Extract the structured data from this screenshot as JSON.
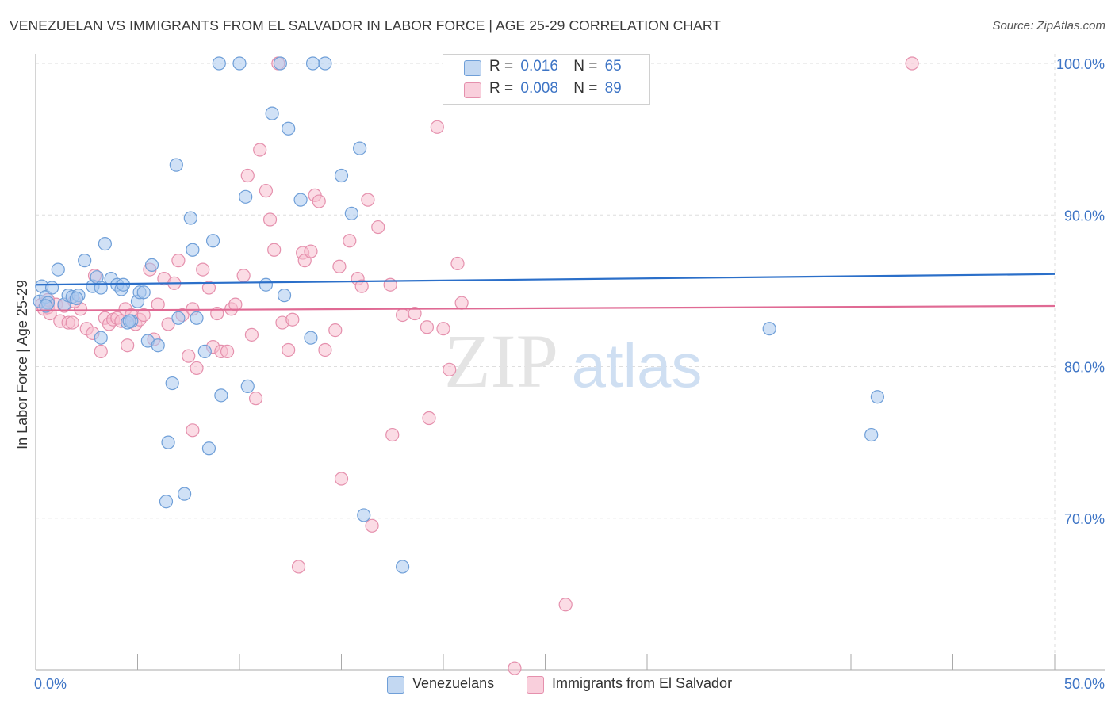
{
  "header": {
    "title": "VENEZUELAN VS IMMIGRANTS FROM EL SALVADOR IN LABOR FORCE | AGE 25-29 CORRELATION CHART",
    "source": "Source: ZipAtlas.com"
  },
  "watermark": {
    "zip": "ZIP",
    "atlas": "atlas"
  },
  "legend": {
    "rows": [
      {
        "r_label": "R =",
        "r_value": "0.016",
        "n_label": "N =",
        "n_value": "65"
      },
      {
        "r_label": "R =",
        "r_value": "0.008",
        "n_label": "N =",
        "n_value": "89"
      }
    ]
  },
  "bottom_legend": {
    "series_a": "Venezuelans",
    "series_b": "Immigrants from El Salvador"
  },
  "colors": {
    "blue_fill": "#aac8ee",
    "blue_stroke": "#6f9fd8",
    "blue_line": "#2b6fc9",
    "pink_fill": "#f7bfd0",
    "pink_stroke": "#e590ad",
    "pink_line": "#e06a94",
    "tick_label": "#3d74c5",
    "grid": "#dedede"
  },
  "chart_data": {
    "type": "scatter",
    "title": "VENEZUELAN VS IMMIGRANTS FROM EL SALVADOR IN LABOR FORCE | AGE 25-29 CORRELATION CHART",
    "xlabel": "",
    "ylabel": "In Labor Force | Age 25-29",
    "xlim": [
      0,
      50
    ],
    "ylim": [
      60,
      101.5
    ],
    "x_tick_labels": [
      {
        "value": 0,
        "label": "0.0%"
      },
      {
        "value": 50,
        "label": "50.0%"
      }
    ],
    "y_tick_labels": [
      {
        "value": 70,
        "label": "70.0%"
      },
      {
        "value": 80,
        "label": "80.0%"
      },
      {
        "value": 90,
        "label": "90.0%"
      },
      {
        "value": 100,
        "label": "100.0%"
      }
    ],
    "x_minor_ticks": [
      0,
      5,
      10,
      15,
      20,
      25,
      30,
      35,
      40,
      45,
      50
    ],
    "series": [
      {
        "name": "Venezuelans",
        "R": 0.016,
        "N": 65,
        "trend": {
          "x": [
            0,
            50
          ],
          "y": [
            85.4,
            86.1
          ]
        },
        "points": [
          [
            0.2,
            84.3
          ],
          [
            0.3,
            85.3
          ],
          [
            0.5,
            84.6
          ],
          [
            0.6,
            84.2
          ],
          [
            0.8,
            85.2
          ],
          [
            1.1,
            86.4
          ],
          [
            1.4,
            84.1
          ],
          [
            1.6,
            84.7
          ],
          [
            1.8,
            84.6
          ],
          [
            2.1,
            84.7
          ],
          [
            2.4,
            87.0
          ],
          [
            2.8,
            85.3
          ],
          [
            3.0,
            85.9
          ],
          [
            3.2,
            81.9
          ],
          [
            3.4,
            88.1
          ],
          [
            3.7,
            85.8
          ],
          [
            4.0,
            85.4
          ],
          [
            4.2,
            85.1
          ],
          [
            4.3,
            85.4
          ],
          [
            4.5,
            82.9
          ],
          [
            4.7,
            83.0
          ],
          [
            5.0,
            84.3
          ],
          [
            5.1,
            84.9
          ],
          [
            5.3,
            84.9
          ],
          [
            5.5,
            81.7
          ],
          [
            5.7,
            86.7
          ],
          [
            6.0,
            81.4
          ],
          [
            6.4,
            71.1
          ],
          [
            6.5,
            75.0
          ],
          [
            6.7,
            78.9
          ],
          [
            6.9,
            93.3
          ],
          [
            7.0,
            83.2
          ],
          [
            7.3,
            71.6
          ],
          [
            7.6,
            89.8
          ],
          [
            7.7,
            87.7
          ],
          [
            7.9,
            83.2
          ],
          [
            8.3,
            81.0
          ],
          [
            8.5,
            74.6
          ],
          [
            8.7,
            88.3
          ],
          [
            9.0,
            100.0
          ],
          [
            9.1,
            78.1
          ],
          [
            10.0,
            100.0
          ],
          [
            10.3,
            91.2
          ],
          [
            10.4,
            78.7
          ],
          [
            11.3,
            85.4
          ],
          [
            11.6,
            96.7
          ],
          [
            12.0,
            100.0
          ],
          [
            12.2,
            84.7
          ],
          [
            12.4,
            95.7
          ],
          [
            13.0,
            91.0
          ],
          [
            13.5,
            81.9
          ],
          [
            13.6,
            100.0
          ],
          [
            14.2,
            100.0
          ],
          [
            15.0,
            92.6
          ],
          [
            15.5,
            90.1
          ],
          [
            15.9,
            94.4
          ],
          [
            16.1,
            70.2
          ],
          [
            18.0,
            66.8
          ],
          [
            36.0,
            82.5
          ],
          [
            41.0,
            75.5
          ],
          [
            41.3,
            78.0
          ],
          [
            0.5,
            84.0
          ],
          [
            2.0,
            84.5
          ],
          [
            4.6,
            83.0
          ],
          [
            3.2,
            85.2
          ]
        ]
      },
      {
        "name": "Immigrants from El Salvador",
        "R": 0.008,
        "N": 89,
        "trend": {
          "x": [
            0,
            50
          ],
          "y": [
            83.7,
            84.0
          ]
        },
        "points": [
          [
            0.3,
            84.1
          ],
          [
            0.4,
            83.8
          ],
          [
            0.6,
            83.9
          ],
          [
            0.7,
            83.5
          ],
          [
            1.0,
            84.1
          ],
          [
            1.2,
            83.0
          ],
          [
            1.4,
            84.0
          ],
          [
            1.6,
            82.9
          ],
          [
            1.8,
            82.9
          ],
          [
            2.2,
            83.8
          ],
          [
            2.5,
            82.5
          ],
          [
            2.8,
            82.2
          ],
          [
            2.9,
            86.0
          ],
          [
            3.2,
            81.0
          ],
          [
            3.4,
            83.2
          ],
          [
            3.6,
            82.8
          ],
          [
            3.8,
            83.1
          ],
          [
            4.0,
            83.2
          ],
          [
            4.2,
            83.0
          ],
          [
            4.4,
            83.8
          ],
          [
            4.5,
            81.4
          ],
          [
            4.7,
            83.4
          ],
          [
            4.9,
            82.8
          ],
          [
            5.1,
            83.1
          ],
          [
            5.3,
            83.4
          ],
          [
            5.6,
            86.4
          ],
          [
            5.8,
            81.8
          ],
          [
            6.0,
            84.1
          ],
          [
            6.3,
            85.8
          ],
          [
            6.5,
            82.8
          ],
          [
            6.8,
            85.5
          ],
          [
            7.0,
            87.0
          ],
          [
            7.2,
            83.4
          ],
          [
            7.5,
            80.7
          ],
          [
            7.7,
            83.8
          ],
          [
            7.9,
            79.9
          ],
          [
            8.2,
            86.4
          ],
          [
            8.5,
            85.2
          ],
          [
            8.7,
            81.3
          ],
          [
            8.9,
            83.5
          ],
          [
            9.1,
            81.0
          ],
          [
            9.4,
            81.0
          ],
          [
            9.6,
            83.8
          ],
          [
            9.8,
            84.1
          ],
          [
            10.2,
            86.0
          ],
          [
            10.4,
            92.6
          ],
          [
            10.6,
            82.1
          ],
          [
            10.8,
            77.9
          ],
          [
            11.0,
            94.3
          ],
          [
            11.3,
            91.6
          ],
          [
            11.5,
            89.7
          ],
          [
            11.7,
            87.7
          ],
          [
            11.9,
            100.0
          ],
          [
            12.1,
            82.9
          ],
          [
            12.4,
            81.1
          ],
          [
            12.6,
            83.1
          ],
          [
            12.9,
            66.8
          ],
          [
            13.1,
            87.5
          ],
          [
            13.2,
            87.0
          ],
          [
            13.5,
            87.6
          ],
          [
            13.7,
            91.3
          ],
          [
            13.9,
            90.9
          ],
          [
            14.2,
            81.1
          ],
          [
            14.7,
            82.4
          ],
          [
            14.9,
            86.6
          ],
          [
            15.0,
            72.6
          ],
          [
            15.4,
            88.3
          ],
          [
            15.8,
            85.8
          ],
          [
            16.0,
            85.3
          ],
          [
            16.3,
            91.0
          ],
          [
            16.5,
            69.5
          ],
          [
            16.8,
            89.2
          ],
          [
            17.4,
            85.4
          ],
          [
            17.5,
            75.5
          ],
          [
            18.0,
            83.4
          ],
          [
            18.6,
            83.5
          ],
          [
            19.2,
            82.6
          ],
          [
            19.3,
            76.6
          ],
          [
            19.7,
            95.8
          ],
          [
            20.0,
            82.5
          ],
          [
            20.3,
            79.8
          ],
          [
            20.7,
            86.8
          ],
          [
            20.9,
            84.2
          ],
          [
            26.0,
            64.3
          ],
          [
            23.5,
            60.1
          ],
          [
            43.0,
            100.0
          ],
          [
            7.7,
            75.8
          ],
          [
            0.6,
            84.4
          ],
          [
            1.9,
            84.3
          ]
        ]
      }
    ]
  }
}
